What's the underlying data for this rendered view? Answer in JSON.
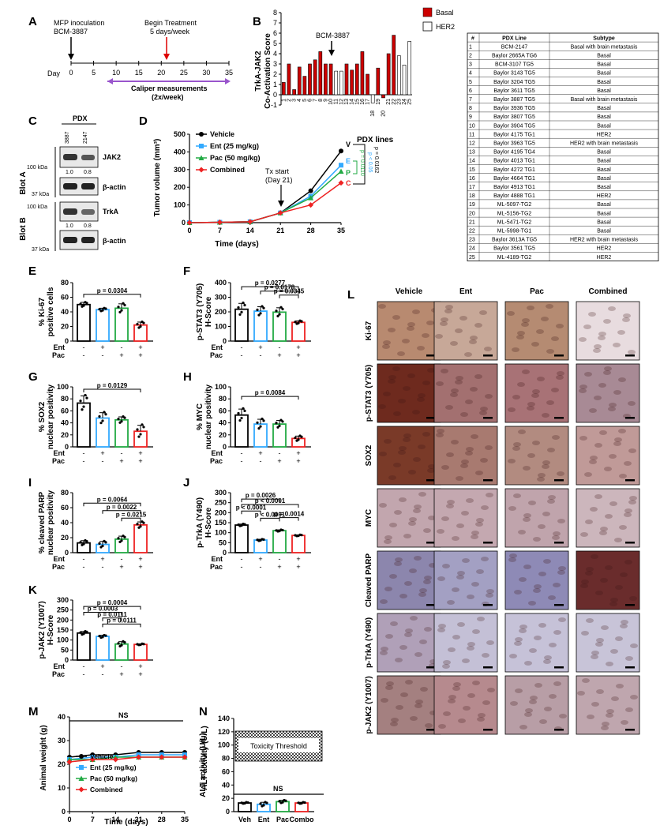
{
  "figure": {
    "panel_letters": [
      "A",
      "B",
      "C",
      "D",
      "E",
      "F",
      "G",
      "H",
      "I",
      "J",
      "K",
      "L",
      "M",
      "N"
    ],
    "panelA": {
      "inoculation": "MFP inoculation",
      "model": "BCM-3887",
      "treatment_title": "Begin Treatment",
      "treatment_sub": "5 days/week",
      "day_label": "Day",
      "ticks": [
        "0",
        "5",
        "10",
        "15",
        "20",
        "25",
        "30",
        "35"
      ],
      "caliper_title": "Caliper measurements",
      "caliper_sub": "(2x/week)"
    },
    "panelB": {
      "ylabel": "TrkA-JAK2",
      "ylabel2": "Co-Activation Score",
      "annotation": "BCM-3887",
      "legend": [
        {
          "name": "Basal",
          "color": "#cc0000"
        },
        {
          "name": "HER2",
          "color": "#ffffff"
        }
      ],
      "yticks": [
        "-1",
        "0",
        "1",
        "2",
        "3",
        "4",
        "5",
        "6",
        "7",
        "8"
      ]
    },
    "panelC": {
      "header": "PDX",
      "lanes": [
        "3887",
        "2147"
      ],
      "blotA": "Blot A",
      "blotB": "Blot B",
      "band1": "JAK2",
      "band2": "β-actin",
      "band3": "TrkA",
      "band4": "β-actin",
      "kda100": "100 kDa",
      "kda37": "37 kDa",
      "quantA": [
        "1.0",
        "0.8"
      ],
      "quantB": [
        "1.0",
        "0.8"
      ]
    },
    "panelD": {
      "ylabel": "Tumor volume (mm³)",
      "xlabel": "Time (days)",
      "tx_start": "Tx start",
      "tx_day": "(Day 21)",
      "pdx_lines": "PDX lines",
      "end_labels": [
        "V",
        "E",
        "P",
        "C"
      ],
      "pvals": [
        "p = 0.0110",
        "p < 0.05",
        "p = 0.0162"
      ],
      "legend": [
        "Vehicle",
        "Ent (25 mg/kg)",
        "Pac (50 mg/kg)",
        "Combined"
      ]
    },
    "table": {
      "headers": [
        "#",
        "PDX Line",
        "Subtype"
      ],
      "rows": [
        [
          "1",
          "BCM-2147",
          "Basal with brain metastasis"
        ],
        [
          "2",
          "Baylor 2665A TG6",
          "Basal"
        ],
        [
          "3",
          "BCM-3107 TG5",
          "Basal"
        ],
        [
          "4",
          "Baylor 3143 TG5",
          "Basal"
        ],
        [
          "5",
          "Baylor 3204 TG5",
          "Basal"
        ],
        [
          "6",
          "Baylor 3611 TG5",
          "Basal"
        ],
        [
          "7",
          "Baylor 3887 TG5",
          "Basal with brain metastasis"
        ],
        [
          "8",
          "Baylor 3936 TG5",
          "Basal"
        ],
        [
          "9",
          "Baylor 3807 TG5",
          "Basal"
        ],
        [
          "10",
          "Baylor 3904 TG5",
          "Basal"
        ],
        [
          "11",
          "Baylor 4175 TG1",
          "HER2"
        ],
        [
          "12",
          "Baylor 3963 TG5",
          "HER2 with brain metastasis"
        ],
        [
          "13",
          "Baylor 4195 TG4",
          "Basal"
        ],
        [
          "14",
          "Baylor 4013 TG1",
          "Basal"
        ],
        [
          "15",
          "Baylor 4272 TG1",
          "Basal"
        ],
        [
          "16",
          "Baylor 4664 TG1",
          "Basal"
        ],
        [
          "17",
          "Baylor 4913 TG1",
          "Basal"
        ],
        [
          "18",
          "Baylor 4888 TG1",
          "HER2"
        ],
        [
          "19",
          "ML-5097-TG2",
          "Basal"
        ],
        [
          "20",
          "ML-5156-TG2",
          "Basal"
        ],
        [
          "21",
          "ML-5471-TG2",
          "Basal"
        ],
        [
          "22",
          "ML-5998-TG1",
          "Basal"
        ],
        [
          "23",
          "Baylor 3613A TG5",
          "HER2 with brain metastasis"
        ],
        [
          "24",
          "Baylor 3561 TG5",
          "HER2"
        ],
        [
          "25",
          "ML-4189-TG2",
          "HER2"
        ]
      ]
    },
    "bars": {
      "E": {
        "ylabel": "% Ki-67",
        "ylabel2": "positive cells",
        "pvals": [
          "p = 0.0304"
        ]
      },
      "F": {
        "ylabel": "p-STAT3 (Y705)",
        "ylabel2": "H-Score",
        "pvals": [
          "p = 0.0277",
          "p = 0.0178",
          "p = 0.0345"
        ]
      },
      "G": {
        "ylabel": "% SOX2",
        "ylabel2": "nuclear positivity",
        "pvals": [
          "p = 0.0129"
        ]
      },
      "H": {
        "ylabel": "% MYC",
        "ylabel2": "nuclear positivity",
        "pvals": [
          "p = 0.0084"
        ]
      },
      "I": {
        "ylabel": "% cleaved PARP",
        "ylabel2": "nuclear positivity",
        "pvals": [
          "p = 0.0064",
          "p = 0.0022",
          "p = 0.0215"
        ]
      },
      "J": {
        "ylabel": "p-TrkA (Y490)",
        "ylabel2": "H-Score",
        "pvals": [
          "p < 0.0001",
          "p = 0.0026",
          "p < 0.0001",
          "p < 0.0001",
          "p = 0.0014"
        ]
      },
      "K": {
        "ylabel": "p-JAK2 (Y1007)",
        "ylabel2": "H-Score",
        "pvals": [
          "p = 0.0004",
          "p = 0.0003",
          "p = 0.0111",
          "p = 0.0111"
        ]
      }
    },
    "treatment_rows": {
      "ent": "Ent",
      "pac": "Pac",
      "ent_marks": [
        "-",
        "+",
        "-",
        "+"
      ],
      "pac_marks": [
        "-",
        "-",
        "+",
        "+"
      ]
    },
    "panelL": {
      "columns": [
        "Vehicle",
        "Ent",
        "Pac",
        "Combined"
      ],
      "rows": [
        "Ki-67",
        "p-STAT3 (Y705)",
        "SOX2",
        "MYC",
        "Cleaved PARP",
        "p-TrkA (Y490)",
        "p-JAK2 (Y1007)"
      ]
    },
    "panelM": {
      "ylabel": "Animal weight (g)",
      "xlabel": "Time (days)",
      "ns": "NS",
      "legend": [
        "Vehicle",
        "Ent (25 mg/kg)",
        "Pac (50 mg/kg)",
        "Combined"
      ]
    },
    "panelN": {
      "ylabel": "ALT activity (U/L)",
      "threshold": "Toxicity Threshold",
      "ns": "NS",
      "categories": [
        "Veh",
        "Ent",
        "Pac",
        "Combo"
      ]
    },
    "colors": {
      "vehicle": "#000000",
      "ent": "#33aaff",
      "pac": "#22aa44",
      "combined": "#ee2222"
    }
  },
  "chart_data": [
    {
      "panel": "B",
      "type": "bar",
      "ylabel": "TrkA-JAK2 Co-Activation Score",
      "categories": [
        "1",
        "2",
        "3",
        "4",
        "5",
        "6",
        "7",
        "8",
        "9",
        "10",
        "11",
        "12",
        "13",
        "14",
        "15",
        "16",
        "17",
        "18",
        "19",
        "20",
        "21",
        "22",
        "23",
        "24",
        "25"
      ],
      "values": [
        1.2,
        3.0,
        0.5,
        2.7,
        1.8,
        3.0,
        3.4,
        4.2,
        3.0,
        3.0,
        2.3,
        2.3,
        3.0,
        2.4,
        3.0,
        4.2,
        2.0,
        -0.8,
        2.6,
        -0.3,
        4.0,
        5.8,
        3.8,
        2.9,
        5.2
      ],
      "series_type": [
        "Basal",
        "Basal",
        "Basal",
        "Basal",
        "Basal",
        "Basal",
        "Basal",
        "Basal",
        "Basal",
        "Basal",
        "HER2",
        "HER2",
        "Basal",
        "Basal",
        "Basal",
        "Basal",
        "Basal",
        "HER2",
        "Basal",
        "Basal",
        "Basal",
        "Basal",
        "HER2",
        "HER2",
        "HER2"
      ],
      "ylim": [
        -1,
        8
      ]
    },
    {
      "panel": "D",
      "type": "line",
      "xlabel": "Time (days)",
      "ylabel": "Tumor volume (mm³)",
      "x": [
        0,
        7,
        14,
        21,
        28,
        35
      ],
      "series": [
        {
          "name": "Vehicle",
          "values": [
            0,
            2,
            5,
            55,
            180,
            405
          ]
        },
        {
          "name": "Ent (25 mg/kg)",
          "values": [
            0,
            2,
            5,
            55,
            150,
            325
          ]
        },
        {
          "name": "Pac (50 mg/kg)",
          "values": [
            0,
            2,
            5,
            55,
            140,
            290
          ]
        },
        {
          "name": "Combined",
          "values": [
            0,
            2,
            5,
            55,
            100,
            225
          ]
        }
      ],
      "ylim": [
        0,
        500
      ],
      "yticks": [
        0,
        100,
        200,
        300,
        400,
        500
      ]
    },
    {
      "panel": "E",
      "type": "bar",
      "categories": [
        "Vehicle",
        "Ent",
        "Pac",
        "Combined"
      ],
      "values": [
        50,
        43,
        45,
        22
      ],
      "errors": [
        3,
        2,
        6,
        4
      ],
      "ylim": [
        0,
        80
      ],
      "yticks": [
        0,
        20,
        40,
        60,
        80
      ]
    },
    {
      "panel": "F",
      "type": "bar",
      "categories": [
        "Vehicle",
        "Ent",
        "Pac",
        "Combined"
      ],
      "values": [
        218,
        205,
        198,
        128
      ],
      "errors": [
        40,
        30,
        30,
        10
      ],
      "ylim": [
        0,
        400
      ],
      "yticks": [
        0,
        100,
        200,
        300,
        400
      ]
    },
    {
      "panel": "G",
      "type": "bar",
      "categories": [
        "Vehicle",
        "Ent",
        "Pac",
        "Combined"
      ],
      "values": [
        73,
        48,
        45,
        26
      ],
      "errors": [
        12,
        9,
        5,
        10
      ],
      "ylim": [
        0,
        100
      ],
      "yticks": [
        0,
        20,
        40,
        60,
        80,
        100
      ]
    },
    {
      "panel": "H",
      "type": "bar",
      "categories": [
        "Vehicle",
        "Ent",
        "Pac",
        "Combined"
      ],
      "values": [
        53,
        38,
        38,
        14
      ],
      "errors": [
        10,
        8,
        6,
        4
      ],
      "ylim": [
        0,
        100
      ],
      "yticks": [
        0,
        20,
        40,
        60,
        80,
        100
      ]
    },
    {
      "panel": "I",
      "type": "bar",
      "categories": [
        "Vehicle",
        "Ent",
        "Pac",
        "Combined"
      ],
      "values": [
        13,
        11,
        18,
        37
      ],
      "errors": [
        3,
        4,
        4,
        4
      ],
      "ylim": [
        0,
        80
      ],
      "yticks": [
        0,
        20,
        40,
        60,
        80
      ]
    },
    {
      "panel": "J",
      "type": "bar",
      "categories": [
        "Vehicle",
        "Ent",
        "Pac",
        "Combined"
      ],
      "values": [
        138,
        63,
        110,
        86
      ],
      "errors": [
        5,
        4,
        4,
        3
      ],
      "ylim": [
        0,
        300
      ],
      "yticks": [
        0,
        50,
        100,
        150,
        200,
        250,
        300
      ]
    },
    {
      "panel": "K",
      "type": "bar",
      "categories": [
        "Vehicle",
        "Ent",
        "Pac",
        "Combined"
      ],
      "values": [
        135,
        118,
        80,
        78
      ],
      "errors": [
        8,
        6,
        12,
        3
      ],
      "ylim": [
        0,
        300
      ],
      "yticks": [
        0,
        50,
        100,
        150,
        200,
        250,
        300
      ]
    },
    {
      "panel": "M",
      "type": "line",
      "xlabel": "Time (days)",
      "ylabel": "Animal weight (g)",
      "x": [
        0,
        7,
        14,
        21,
        28,
        35
      ],
      "series": [
        {
          "name": "Vehicle",
          "values": [
            23,
            24,
            24,
            25,
            25,
            25
          ]
        },
        {
          "name": "Ent (25 mg/kg)",
          "values": [
            22,
            23,
            23,
            24,
            24,
            24
          ]
        },
        {
          "name": "Pac (50 mg/kg)",
          "values": [
            22,
            22,
            23,
            23,
            23,
            23
          ]
        },
        {
          "name": "Combined",
          "values": [
            21,
            22,
            22,
            23,
            23,
            23
          ]
        }
      ],
      "ylim": [
        0,
        40
      ],
      "yticks": [
        0,
        10,
        20,
        30,
        40
      ]
    },
    {
      "panel": "N",
      "type": "bar",
      "categories": [
        "Veh",
        "Ent",
        "Pac",
        "Combo"
      ],
      "values": [
        13,
        11,
        15,
        13
      ],
      "errors": [
        1,
        3,
        2,
        1
      ],
      "ylim": [
        0,
        140
      ],
      "yticks": [
        0,
        20,
        40,
        60,
        80,
        100,
        120,
        140
      ]
    }
  ]
}
